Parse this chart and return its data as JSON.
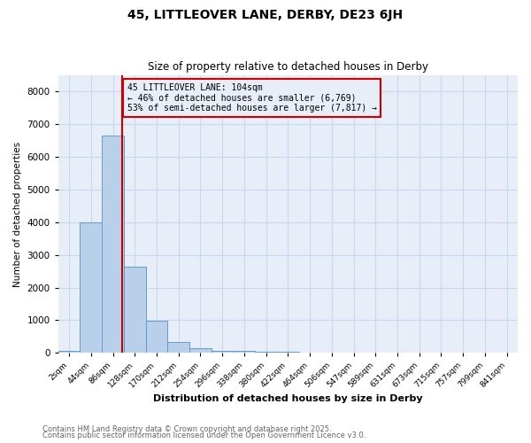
{
  "title1": "45, LITTLEOVER LANE, DERBY, DE23 6JH",
  "title2": "Size of property relative to detached houses in Derby",
  "xlabel": "Distribution of detached houses by size in Derby",
  "ylabel": "Number of detached properties",
  "bin_labels": [
    "2sqm",
    "44sqm",
    "86sqm",
    "128sqm",
    "170sqm",
    "212sqm",
    "254sqm",
    "296sqm",
    "338sqm",
    "380sqm",
    "422sqm",
    "464sqm",
    "506sqm",
    "547sqm",
    "589sqm",
    "631sqm",
    "673sqm",
    "715sqm",
    "757sqm",
    "799sqm",
    "841sqm"
  ],
  "bar_values": [
    60,
    4000,
    6650,
    2650,
    975,
    340,
    150,
    75,
    50,
    45,
    25,
    0,
    0,
    0,
    0,
    0,
    0,
    0,
    0,
    0,
    0
  ],
  "bar_color": "#b8d0ea",
  "bar_edge_color": "#6699cc",
  "vline_x": 2.43,
  "vline_color": "#cc0000",
  "annotation_title": "45 LITTLEOVER LANE: 104sqm",
  "annotation_line2": "← 46% of detached houses are smaller (6,769)",
  "annotation_line3": "53% of semi-detached houses are larger (7,817) →",
  "annotation_box_color": "#cc0000",
  "grid_color": "#c8d8ee",
  "plot_bg_color": "#e8eef8",
  "fig_bg_color": "#ffffff",
  "footer1": "Contains HM Land Registry data © Crown copyright and database right 2025.",
  "footer2": "Contains public sector information licensed under the Open Government Licence v3.0.",
  "ylim": [
    0,
    8500
  ],
  "yticks": [
    0,
    1000,
    2000,
    3000,
    4000,
    5000,
    6000,
    7000,
    8000
  ]
}
